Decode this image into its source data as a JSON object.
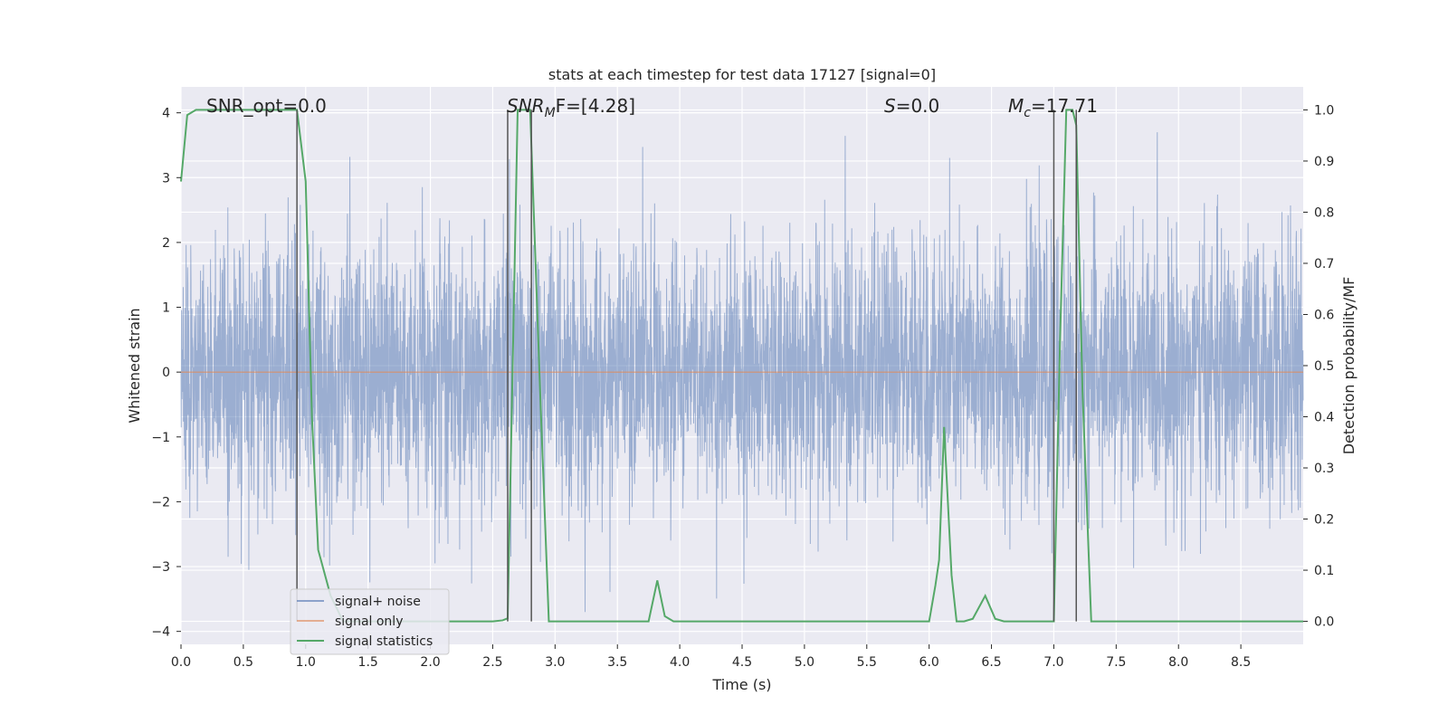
{
  "chart_data": {
    "type": "line",
    "title": "stats at each timestep for test data 17127 [signal=0]",
    "xlabel": "Time (s)",
    "ylabel_left": "Whitened strain",
    "ylabel_right": "Detection probability/MF",
    "xlim": [
      0.0,
      9.0
    ],
    "ylim_left": [
      -4.2,
      4.4
    ],
    "ylim_right": [
      -0.045,
      1.045
    ],
    "x_ticks": [
      0.0,
      0.5,
      1.0,
      1.5,
      2.0,
      2.5,
      3.0,
      3.5,
      4.0,
      4.5,
      5.0,
      5.5,
      6.0,
      6.5,
      7.0,
      7.5,
      8.0,
      8.5
    ],
    "x_tick_labels": [
      "0.0",
      "0.5",
      "1.0",
      "1.5",
      "2.0",
      "2.5",
      "3.0",
      "3.5",
      "4.0",
      "4.5",
      "5.0",
      "5.5",
      "6.0",
      "6.5",
      "7.0",
      "7.5",
      "8.0",
      "8.5"
    ],
    "y_left_ticks": [
      4,
      3,
      2,
      1,
      0,
      -1,
      -2,
      -3,
      -4
    ],
    "y_left_tick_labels": [
      "4",
      "3",
      "2",
      "1",
      "0",
      "−1",
      "−2",
      "−3",
      "−4"
    ],
    "y_right_ticks": [
      1.0,
      0.9,
      0.8,
      0.7,
      0.6,
      0.5,
      0.4,
      0.3,
      0.2,
      0.1,
      0.0
    ],
    "y_right_tick_labels": [
      "1.0",
      "0.9",
      "0.8",
      "0.7",
      "0.6",
      "0.5",
      "0.4",
      "0.3",
      "0.2",
      "0.1",
      "0.0"
    ],
    "grid": true,
    "legend_position": "lower-left",
    "annotations": {
      "snr_opt": "SNR_opt=0.0",
      "snr_mf_main": "SNR",
      "snr_mf_sub": "M",
      "snr_mf_rest": "F=[4.28]",
      "s_italic": "S",
      "s_rest": "=0.0",
      "mc_main": "M",
      "mc_sub": "c",
      "mc_rest": "=17.71"
    },
    "series": [
      {
        "name": "signal+ noise",
        "color": "#4c72b0",
        "kind": "noise",
        "x_range": [
          0.0,
          9.0
        ],
        "typical_amplitude": 1.0,
        "peak_amplitude": 3.7
      },
      {
        "name": "signal only",
        "color": "#dd8452",
        "kind": "constant",
        "x": [
          0.0,
          9.0
        ],
        "y": [
          0.0,
          0.0
        ]
      },
      {
        "name": "signal statistics",
        "color": "#55a868",
        "axis": "right",
        "x": [
          0.0,
          0.05,
          0.12,
          0.2,
          0.4,
          0.6,
          0.8,
          0.93,
          1.0,
          1.05,
          1.1,
          1.2,
          1.3,
          1.5,
          2.0,
          2.5,
          2.58,
          2.62,
          2.66,
          2.7,
          2.75,
          2.8,
          2.88,
          2.95,
          3.2,
          3.5,
          3.75,
          3.82,
          3.88,
          3.95,
          4.0,
          4.5,
          5.0,
          5.5,
          6.0,
          6.05,
          6.08,
          6.12,
          6.18,
          6.22,
          6.28,
          6.35,
          6.45,
          6.53,
          6.6,
          7.0,
          7.05,
          7.1,
          7.15,
          7.18,
          7.23,
          7.3,
          7.5,
          8.0,
          8.5,
          9.0
        ],
        "y": [
          0.86,
          0.99,
          1.0,
          1.0,
          1.0,
          1.0,
          1.0,
          1.0,
          0.86,
          0.4,
          0.14,
          0.05,
          0.0,
          0.0,
          0.0,
          0.0,
          0.002,
          0.006,
          0.5,
          1.0,
          1.0,
          1.0,
          0.45,
          0.0,
          0.0,
          0.0,
          0.0,
          0.08,
          0.01,
          0.0,
          0.0,
          0.0,
          0.0,
          0.0,
          0.0,
          0.07,
          0.12,
          0.38,
          0.09,
          0.0,
          0.0,
          0.005,
          0.05,
          0.005,
          0.0,
          0.0,
          0.55,
          1.0,
          1.0,
          0.97,
          0.45,
          0.0,
          0.0,
          0.0,
          0.0,
          0.0
        ]
      }
    ],
    "vertical_markers": [
      {
        "x": 0.93,
        "color": "#555555"
      },
      {
        "x": 2.62,
        "color": "#555555"
      },
      {
        "x": 2.81,
        "color": "#555555"
      },
      {
        "x": 7.0,
        "color": "#555555"
      },
      {
        "x": 7.18,
        "color": "#555555"
      }
    ]
  }
}
